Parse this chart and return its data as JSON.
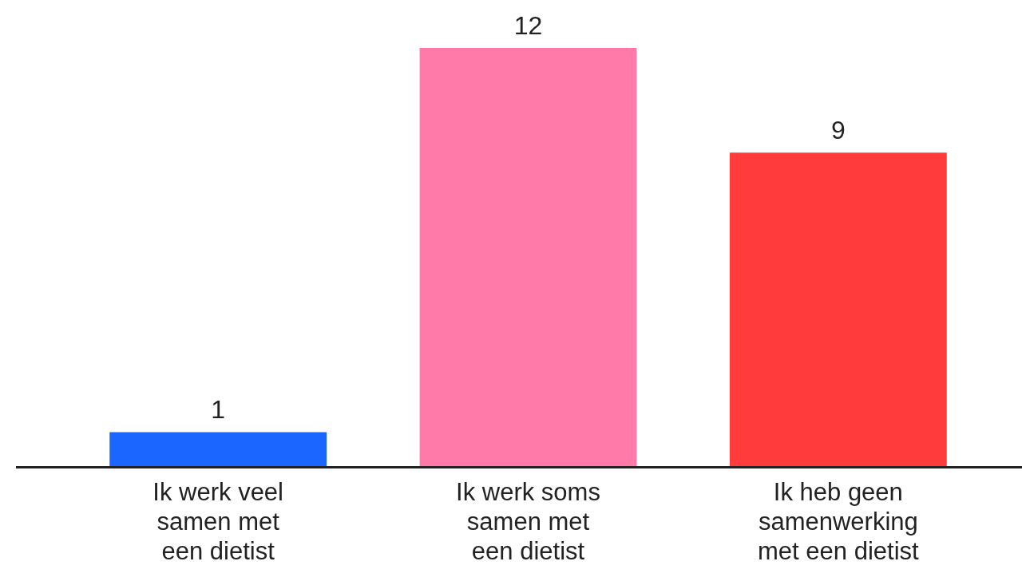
{
  "chart_data": {
    "type": "bar",
    "categories": [
      "Ik werk veel samen met een dietist",
      "Ik werk soms samen met een dietist",
      "Ik heb geen samenwerking met een dietist"
    ],
    "values": [
      1,
      12,
      9
    ],
    "colors": [
      "#1a66ff",
      "#ff7aa8",
      "#ff3b3b"
    ],
    "data_labels": true,
    "grid": false,
    "legend": false
  }
}
